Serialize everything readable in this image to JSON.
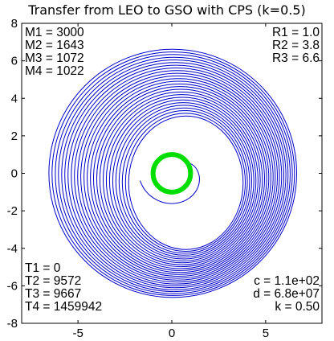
{
  "chart_data": {
    "type": "line",
    "title": "Transfer from LEO to GSO with CPS (k=0.5)",
    "xlabel": "",
    "ylabel": "",
    "xlim": [
      -8,
      8
    ],
    "ylim": [
      -8,
      8
    ],
    "xticks": [
      -5,
      0,
      5
    ],
    "yticks": [
      8,
      6,
      4,
      2,
      0,
      -2,
      -4,
      -6,
      -8
    ],
    "grid": false,
    "series": [
      {
        "color": "#0000cc",
        "kind": "spiral-trajectory",
        "r_start": 1.0,
        "r_end": 6.6
      },
      {
        "color": "#00dd00",
        "kind": "circle",
        "radius": 1.0,
        "center": [
          0,
          0
        ]
      }
    ],
    "annotations_top_left": [
      "M1 = 3000",
      "M2 = 1643",
      "M3 = 1072",
      "M4 = 1022"
    ],
    "annotations_top_right": [
      "R1 = 1.0",
      "R2 = 3.8",
      "R3 = 6.6"
    ],
    "annotations_bottom_left": [
      "T1 = 0",
      "T2 = 9572",
      "T3 = 9667",
      "T4 = 1459942"
    ],
    "annotations_bottom_right": [
      "c = 1.1e+02",
      "d = 6.8e+07",
      "k = 0.50"
    ]
  }
}
